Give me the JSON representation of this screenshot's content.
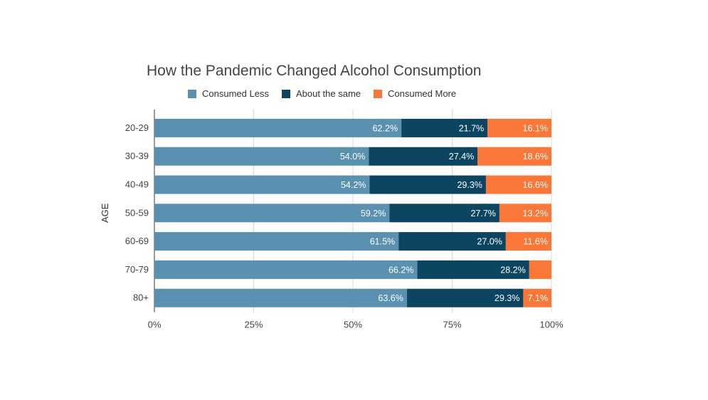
{
  "chart_data": {
    "type": "bar",
    "orientation": "horizontal",
    "stacked": true,
    "title": "How the Pandemic Changed Alcohol Consumption",
    "ylabel": "AGE",
    "xlabel": "",
    "categories": [
      "20-29",
      "30-39",
      "40-49",
      "50-59",
      "60-69",
      "70-79",
      "80+"
    ],
    "series": [
      {
        "name": "Consumed Less",
        "color": "#5a91b0",
        "values": [
          62.2,
          54.0,
          54.2,
          59.2,
          61.5,
          66.2,
          63.6
        ]
      },
      {
        "name": "About the same",
        "color": "#0b4561",
        "values": [
          21.7,
          27.4,
          29.3,
          27.7,
          27.0,
          28.2,
          29.3
        ]
      },
      {
        "name": "Consumed More",
        "color": "#fb7737",
        "values": [
          16.1,
          18.6,
          16.6,
          13.2,
          11.6,
          5.6,
          7.1
        ]
      }
    ],
    "data_labels": [
      [
        "62.2%",
        "21.7%",
        "16.1%"
      ],
      [
        "54.0%",
        "27.4%",
        "18.6%"
      ],
      [
        "54.2%",
        "29.3%",
        "16.6%"
      ],
      [
        "59.2%",
        "27.7%",
        "13.2%"
      ],
      [
        "61.5%",
        "27.0%",
        "11.6%"
      ],
      [
        "66.2%",
        "28.2%",
        ""
      ],
      [
        "63.6%",
        "29.3%",
        "7.1%"
      ]
    ],
    "x_ticks": [
      "0%",
      "25%",
      "50%",
      "75%",
      "100%"
    ],
    "x_tick_values": [
      0,
      25,
      50,
      75,
      100
    ],
    "xlim": [
      0,
      100
    ],
    "grid": true,
    "legend_position": "top"
  }
}
